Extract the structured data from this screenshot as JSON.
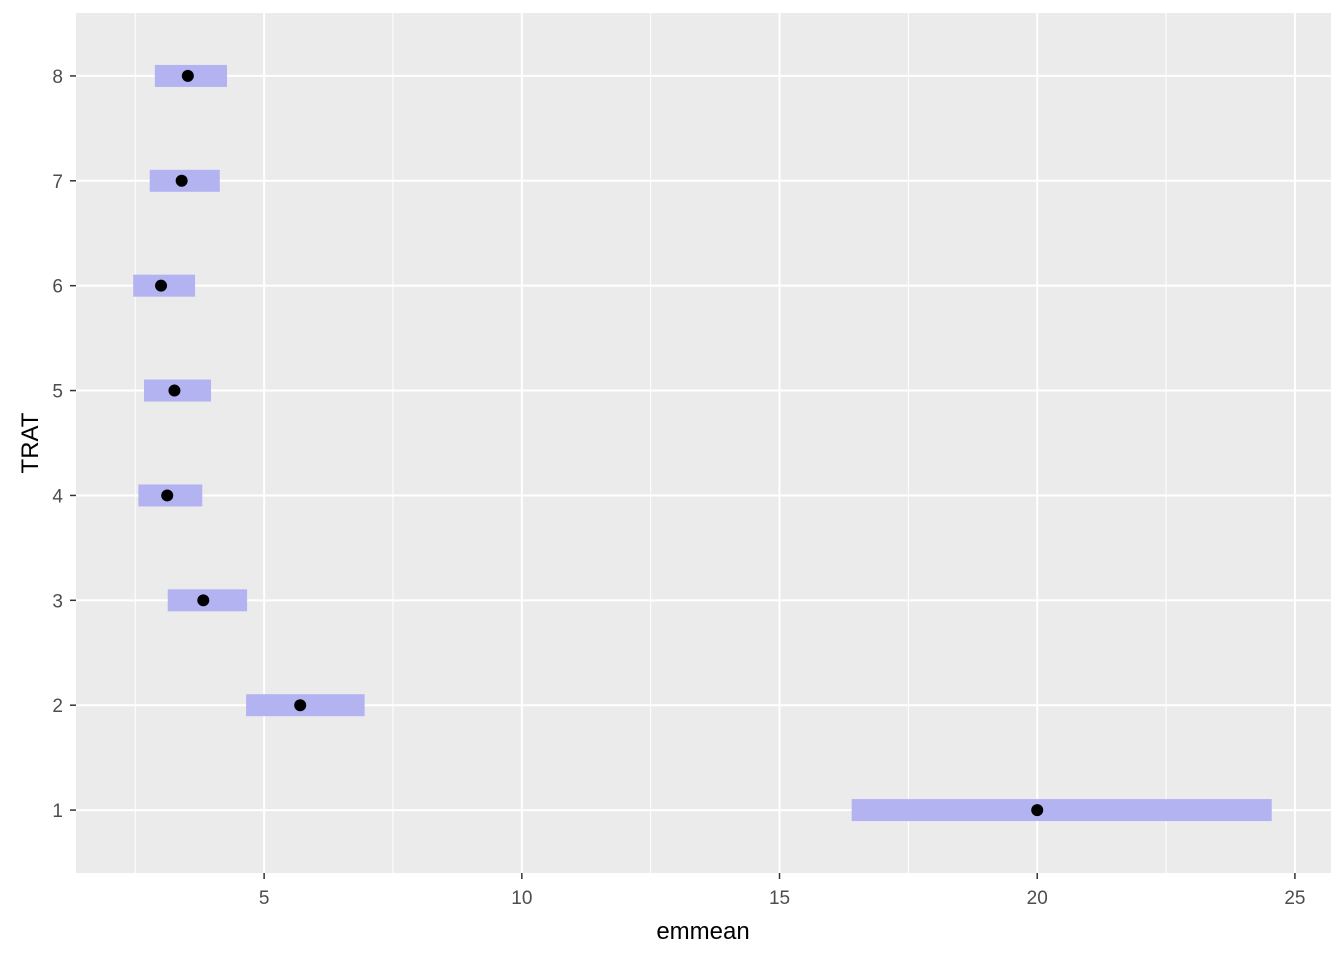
{
  "chart_data": {
    "type": "dot-interval",
    "xlabel": "emmean",
    "ylabel": "TRAT",
    "xlim": [
      1.35,
      25.7
    ],
    "ylim": [
      0.4,
      8.6
    ],
    "x_ticks": [
      5,
      10,
      15,
      20,
      25
    ],
    "x_minor_ticks": [
      2.5,
      7.5,
      12.5,
      17.5,
      22.5
    ],
    "categories": [
      "1",
      "2",
      "3",
      "4",
      "5",
      "6",
      "7",
      "8"
    ],
    "points": [
      {
        "trat": "1",
        "emmean": 20.0,
        "lower": 16.4,
        "upper": 24.55
      },
      {
        "trat": "2",
        "emmean": 5.7,
        "lower": 4.65,
        "upper": 6.95
      },
      {
        "trat": "3",
        "emmean": 3.82,
        "lower": 3.13,
        "upper": 4.67
      },
      {
        "trat": "4",
        "emmean": 3.12,
        "lower": 2.56,
        "upper": 3.8
      },
      {
        "trat": "5",
        "emmean": 3.26,
        "lower": 2.67,
        "upper": 3.97
      },
      {
        "trat": "6",
        "emmean": 3.0,
        "lower": 2.46,
        "upper": 3.66
      },
      {
        "trat": "7",
        "emmean": 3.4,
        "lower": 2.78,
        "upper": 4.14
      },
      {
        "trat": "8",
        "emmean": 3.52,
        "lower": 2.88,
        "upper": 4.28
      }
    ],
    "grid": true,
    "colors": {
      "panel_background": "#ebebeb",
      "grid_major": "#ffffff",
      "interval_fill": "#b3b3f2",
      "point": "#000000"
    }
  }
}
